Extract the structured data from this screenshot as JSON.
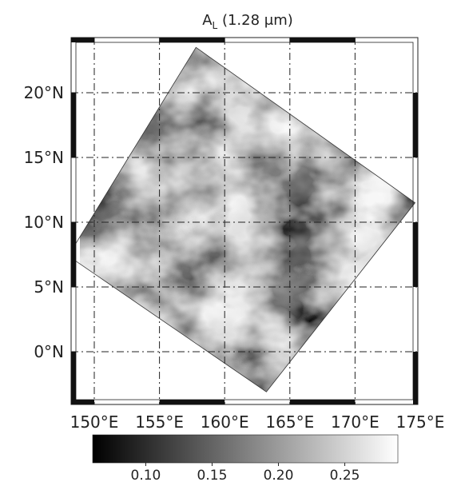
{
  "title": {
    "main": "A",
    "subscript": "L",
    "suffix": " (1.28 μm)"
  },
  "map": {
    "lat_ticks": [
      {
        "value": 20,
        "label": "20°N"
      },
      {
        "value": 15,
        "label": "15°N"
      },
      {
        "value": 10,
        "label": "10°N"
      },
      {
        "value": 5,
        "label": "5°N"
      },
      {
        "value": 0,
        "label": "0°N"
      }
    ],
    "lon_ticks": [
      {
        "value": 150,
        "label": "150°E"
      },
      {
        "value": 155,
        "label": "155°E"
      },
      {
        "value": 160,
        "label": "160°E"
      },
      {
        "value": 165,
        "label": "165°E"
      },
      {
        "value": 170,
        "label": "170°E"
      },
      {
        "value": 175,
        "label": "175°E"
      }
    ],
    "lon_range": [
      148.5,
      174.5
    ],
    "lat_range": [
      -4,
      25
    ],
    "grid": true,
    "gridline_style": "dash-dot",
    "swath_corners_deg": [
      {
        "lon": 157.8,
        "lat": 23.5
      },
      {
        "lon": 174.6,
        "lat": 11.5
      },
      {
        "lon": 163.2,
        "lat": -3.1
      },
      {
        "lon": 148.0,
        "lat": 7.4
      }
    ]
  },
  "colorbar": {
    "ticks": [
      {
        "value": 0.1,
        "label": "0.10"
      },
      {
        "value": 0.15,
        "label": "0.15"
      },
      {
        "value": 0.2,
        "label": "0.20"
      },
      {
        "value": 0.25,
        "label": "0.25"
      }
    ],
    "range": [
      0.06,
      0.29
    ],
    "colormap": "gray"
  }
}
